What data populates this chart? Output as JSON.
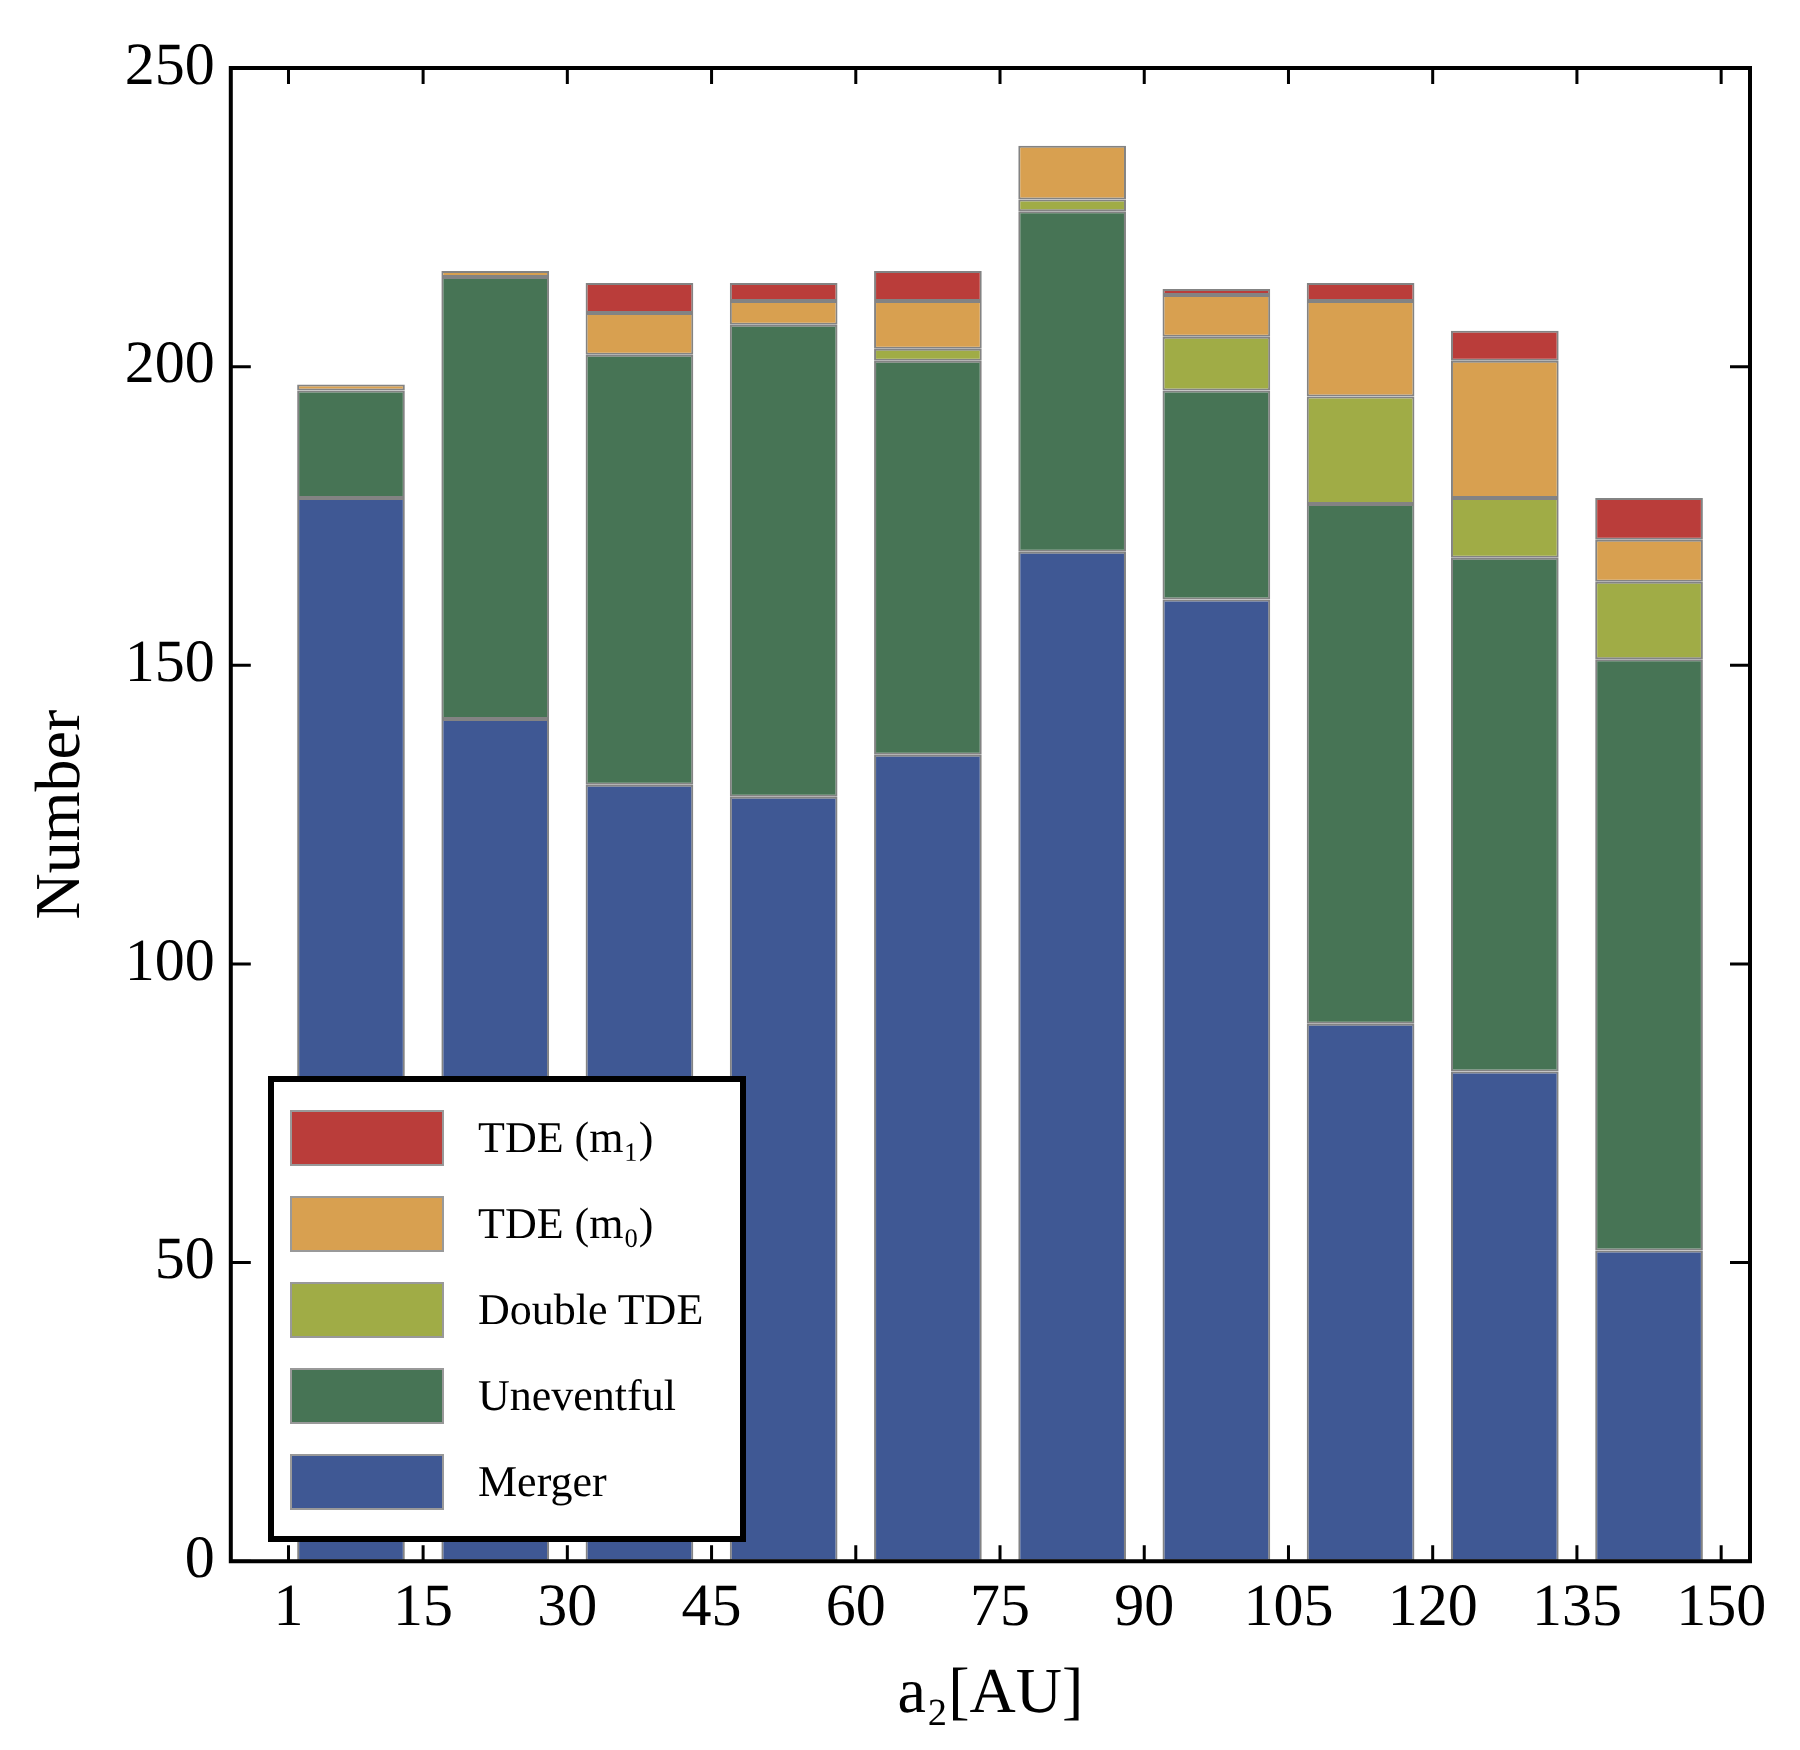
{
  "chart_data": {
    "type": "bar",
    "stacked": true,
    "xlabel": "a₂[AU]",
    "ylabel": "Number",
    "x": [
      7.5,
      22.5,
      37.5,
      52.5,
      67.5,
      82.5,
      97.5,
      112.5,
      127.5,
      142.5
    ],
    "xlim": [
      -5,
      153
    ],
    "xticks": [
      1,
      15,
      30,
      45,
      60,
      75,
      90,
      105,
      120,
      135,
      150
    ],
    "ylim": [
      0,
      250
    ],
    "yticks": [
      0,
      50,
      100,
      150,
      200,
      250
    ],
    "grid": false,
    "legend": "bottom left",
    "series": [
      {
        "name": "Merger",
        "color": "#3f5894",
        "values": [
          178,
          141,
          130,
          128,
          135,
          169,
          161,
          90,
          82,
          52
        ]
      },
      {
        "name": "Uneventful",
        "color": "#477455",
        "values": [
          18,
          74,
          72,
          79,
          66,
          57,
          35,
          87,
          86,
          99
        ]
      },
      {
        "name": "Double TDE",
        "color": "#a0ac46",
        "values": [
          0,
          0,
          0,
          0,
          2,
          2,
          9,
          18,
          10,
          13
        ]
      },
      {
        "name": "TDE (m₀)",
        "color": "#d8a050",
        "values": [
          1,
          1,
          7,
          4,
          8,
          9,
          7,
          16,
          23,
          7
        ]
      },
      {
        "name": "TDE (m₁)",
        "color": "#ba3d3a",
        "values": [
          0,
          0,
          5,
          3,
          5,
          0,
          1,
          3,
          5,
          7
        ]
      }
    ]
  }
}
